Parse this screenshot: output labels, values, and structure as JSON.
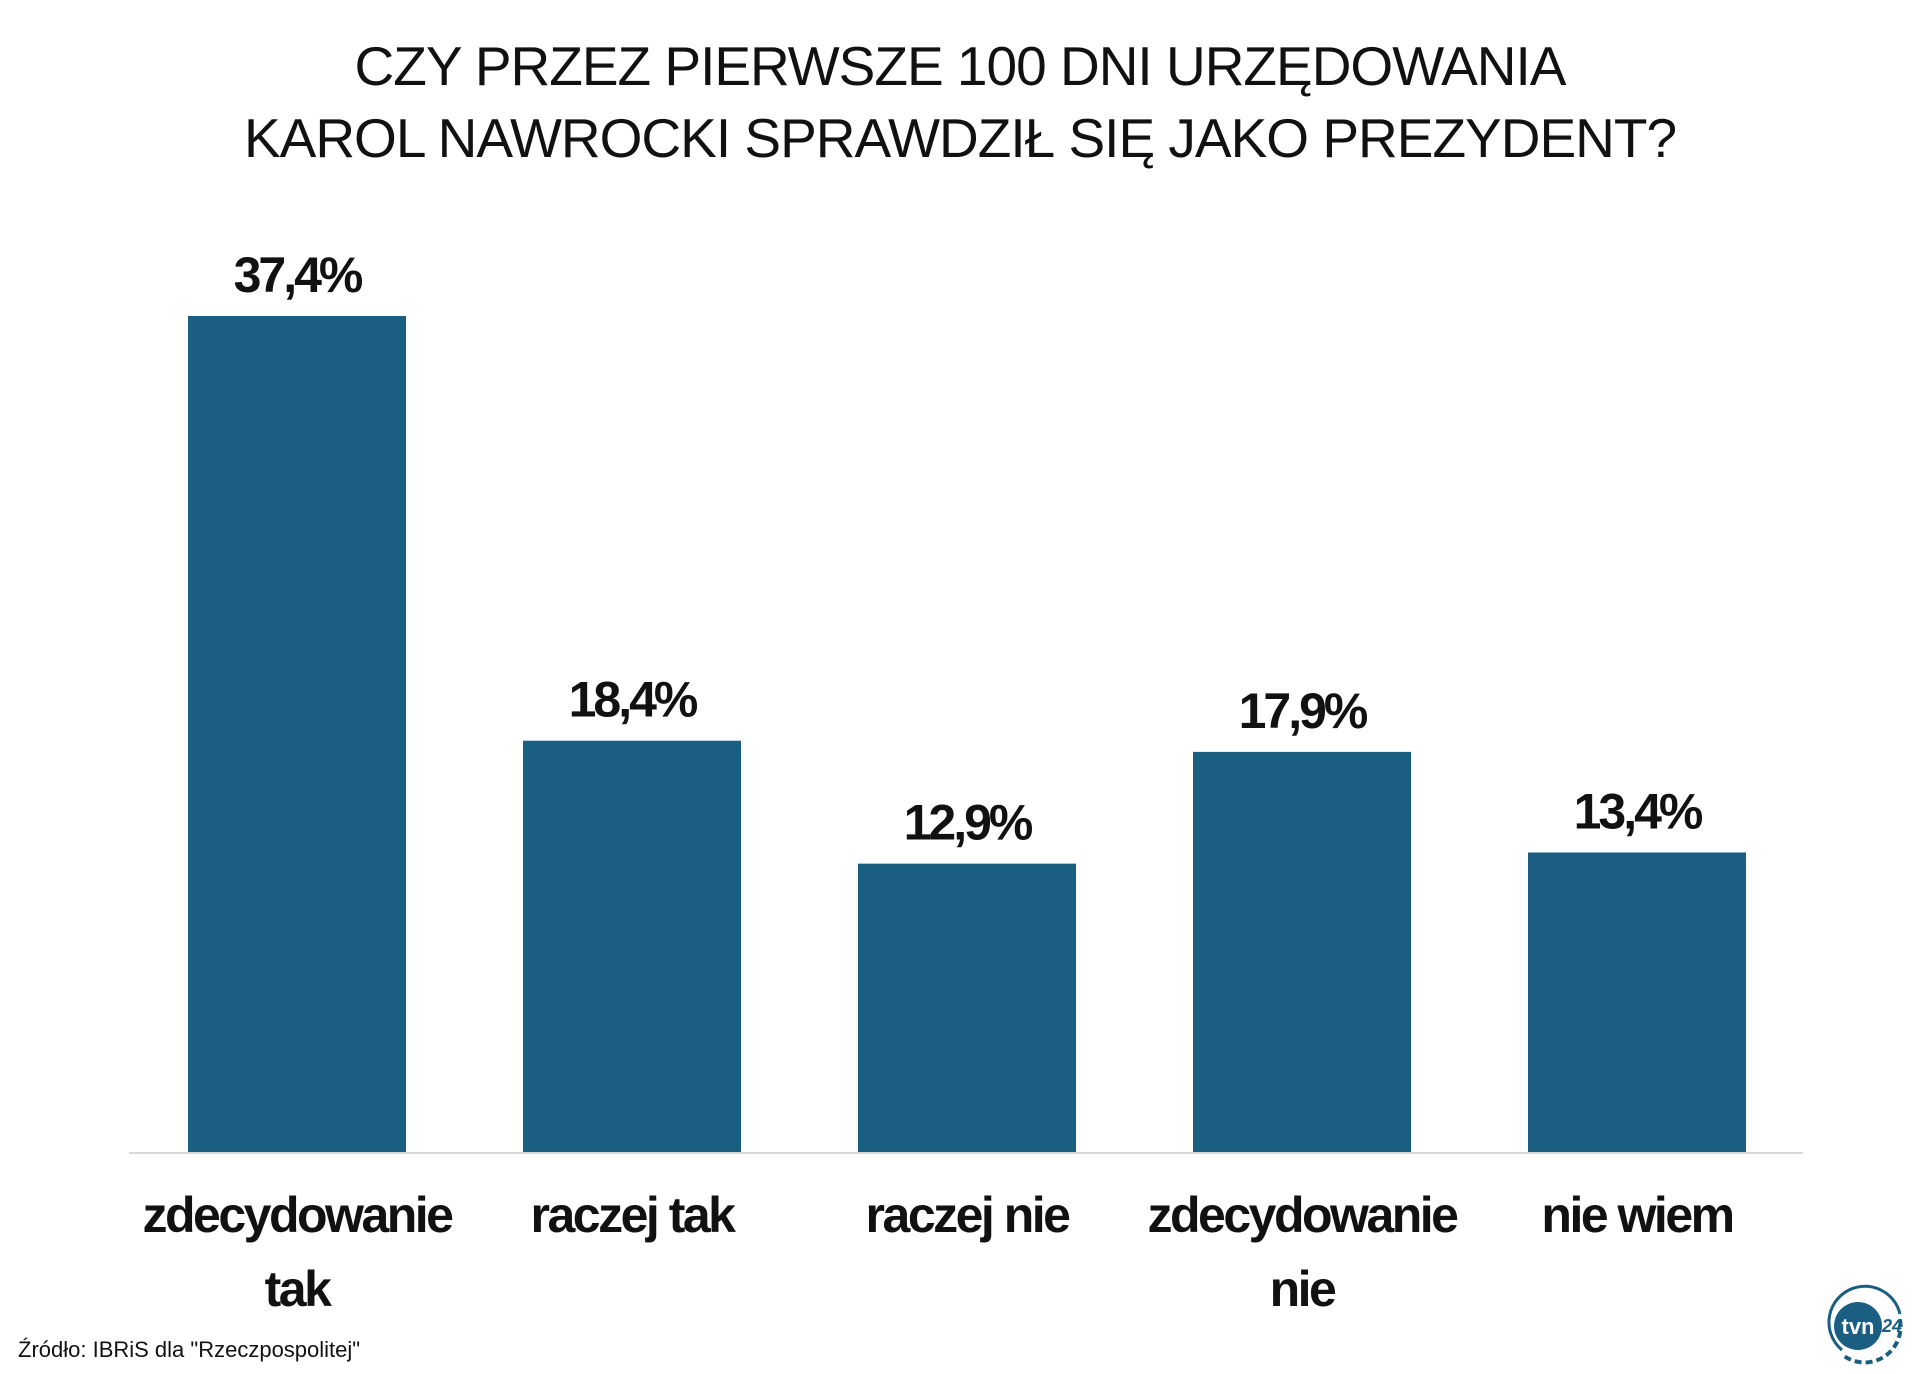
{
  "chart_data": {
    "type": "bar",
    "title": [
      "CZY PRZEZ PIERWSZE 100 DNI URZĘDOWANIA",
      "KAROL NAWROCKI SPRAWDZIŁ SIĘ JAKO PREZYDENT?"
    ],
    "categories": [
      [
        "zdecydowanie",
        "tak"
      ],
      [
        "raczej tak"
      ],
      [
        "raczej nie"
      ],
      [
        "zdecydowanie",
        "nie"
      ],
      [
        "nie wiem"
      ]
    ],
    "values": [
      37.4,
      18.4,
      12.9,
      17.9,
      13.4
    ],
    "value_labels": [
      "37,4%",
      "18,4%",
      "12,9%",
      "17,9%",
      "13,4%"
    ],
    "xlabel": "",
    "ylabel": "",
    "ylim": [
      0,
      37.4
    ],
    "grid": false,
    "bar_color": "#1a5f82"
  },
  "source": "Źródło: IBRiS dla \"Rzeczpospolitej\"",
  "logo": {
    "text": "tvn24",
    "color": "#1a5f82"
  }
}
